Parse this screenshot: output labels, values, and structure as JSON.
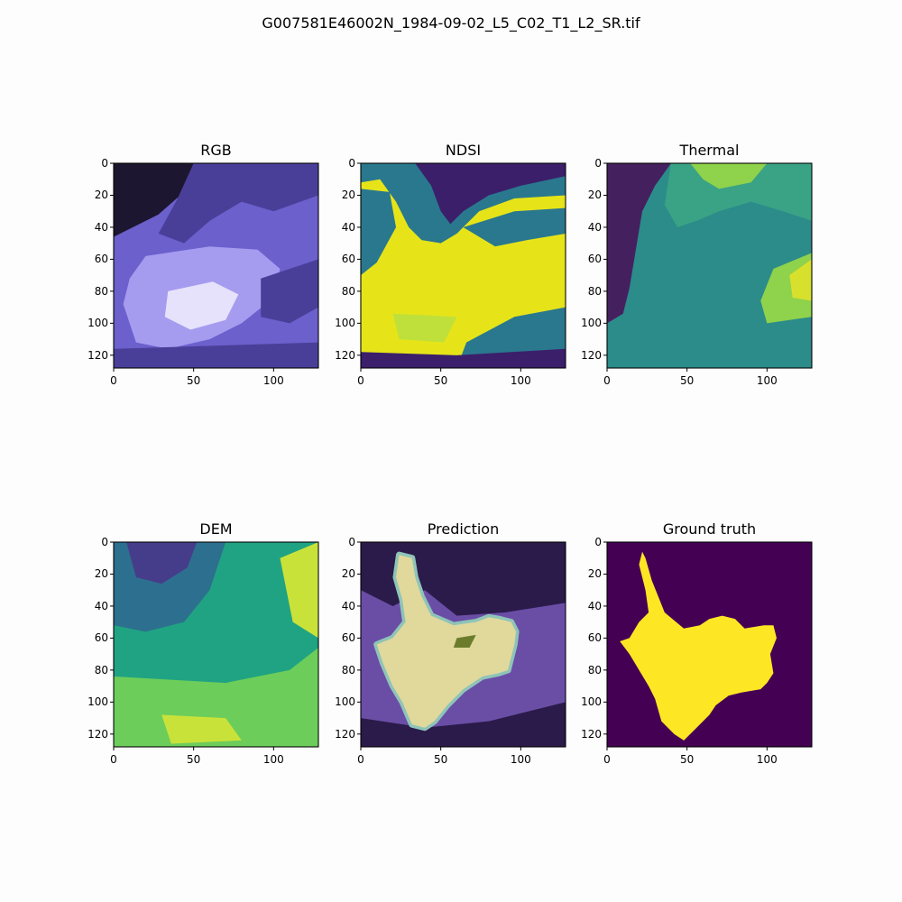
{
  "figure_title": "G007581E46002N_1984-09-02_L5_C02_T1_L2_SR.tif",
  "chart_data": [
    {
      "type": "heatmap",
      "title": "RGB",
      "colors": [
        "#1d1630",
        "#4a3f98",
        "#6b60cc",
        "#a59cf0",
        "#e6e2fb"
      ],
      "xlim": [
        0,
        128
      ],
      "ylim": [
        128,
        0
      ],
      "xticks": [
        0,
        50,
        100
      ],
      "yticks": [
        0,
        20,
        40,
        60,
        80,
        100,
        120
      ]
    },
    {
      "type": "heatmap",
      "title": "NDSI",
      "colors": [
        "#3b1f6b",
        "#2a788e",
        "#bfe03a",
        "#e6e419"
      ],
      "xlim": [
        0,
        128
      ],
      "ylim": [
        128,
        0
      ],
      "xticks": [
        0,
        50,
        100
      ],
      "yticks": [
        0,
        20,
        40,
        60,
        80,
        100,
        120
      ]
    },
    {
      "type": "heatmap",
      "title": "Thermal",
      "colors": [
        "#45205f",
        "#2b8c8a",
        "#3aa385",
        "#8fd24b",
        "#d8e02e"
      ],
      "xlim": [
        0,
        128
      ],
      "ylim": [
        128,
        0
      ],
      "xticks": [
        0,
        50,
        100
      ],
      "yticks": [
        0,
        20,
        40,
        60,
        80,
        100,
        120
      ]
    },
    {
      "type": "heatmap",
      "title": "DEM",
      "colors": [
        "#463d8a",
        "#2d6f8f",
        "#20a383",
        "#6ccd5a",
        "#c9e23a"
      ],
      "xlim": [
        0,
        128
      ],
      "ylim": [
        128,
        0
      ],
      "xticks": [
        0,
        50,
        100
      ],
      "yticks": [
        0,
        20,
        40,
        60,
        80,
        100,
        120
      ]
    },
    {
      "type": "heatmap",
      "title": "Prediction",
      "colors": [
        "#2b1b4a",
        "#6a4ea6",
        "#e6d99a",
        "#8fc4b8"
      ],
      "xlim": [
        0,
        128
      ],
      "ylim": [
        128,
        0
      ],
      "xticks": [
        0,
        50,
        100
      ],
      "yticks": [
        0,
        20,
        40,
        60,
        80,
        100,
        120
      ]
    },
    {
      "type": "heatmap",
      "title": "Ground truth",
      "colors": [
        "#440154",
        "#fde725"
      ],
      "xlim": [
        0,
        128
      ],
      "ylim": [
        128,
        0
      ],
      "xticks": [
        0,
        50,
        100
      ],
      "yticks": [
        0,
        20,
        40,
        60,
        80,
        100,
        120
      ]
    }
  ]
}
